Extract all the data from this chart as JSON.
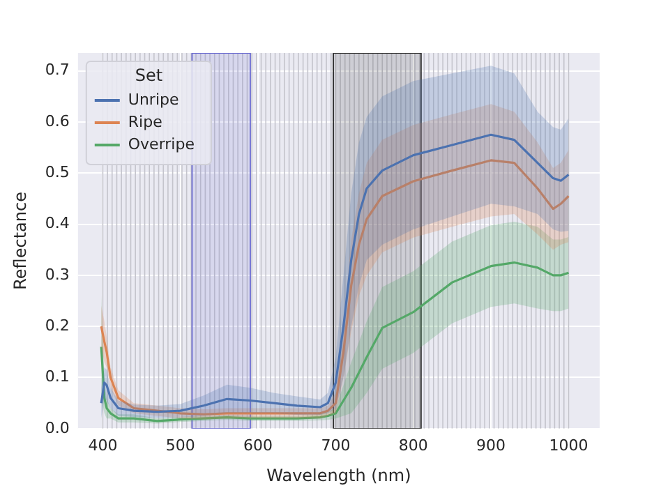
{
  "chart_data": {
    "type": "line",
    "xlabel": "Wavelength (nm)",
    "ylabel": "Reflectance",
    "legend_title": "Set",
    "legend": "top left",
    "grid": true,
    "x": [
      398,
      402,
      405,
      410,
      420,
      440,
      470,
      500,
      530,
      560,
      590,
      620,
      650,
      680,
      690,
      700,
      710,
      720,
      730,
      740,
      760,
      800,
      850,
      900,
      930,
      960,
      980,
      990,
      1000
    ],
    "xlim": [
      368,
      1040
    ],
    "xticks": [
      400,
      500,
      600,
      700,
      800,
      900,
      1000
    ],
    "ylim": [
      0,
      0.735
    ],
    "yticks": [
      {
        "value": 0,
        "label": "0.0"
      },
      0.1,
      0.2,
      0.3,
      0.4,
      0.5,
      0.6,
      0.7
    ],
    "series": [
      {
        "name": "Unripe",
        "color": "#4c72b0",
        "values": [
          0.05,
          0.09,
          0.085,
          0.06,
          0.04,
          0.035,
          0.033,
          0.035,
          0.045,
          0.058,
          0.055,
          0.05,
          0.045,
          0.042,
          0.05,
          0.09,
          0.2,
          0.33,
          0.42,
          0.47,
          0.505,
          0.535,
          0.555,
          0.575,
          0.565,
          0.52,
          0.49,
          0.485,
          0.497
        ],
        "lower": [
          0.02,
          0.06,
          0.055,
          0.04,
          0.025,
          0.023,
          0.021,
          0.022,
          0.025,
          0.03,
          0.03,
          0.03,
          0.027,
          0.027,
          0.03,
          0.04,
          0.1,
          0.2,
          0.28,
          0.33,
          0.36,
          0.39,
          0.415,
          0.44,
          0.435,
          0.42,
          0.39,
          0.385,
          0.387
        ],
        "upper": [
          0.08,
          0.12,
          0.115,
          0.08,
          0.055,
          0.047,
          0.045,
          0.048,
          0.065,
          0.086,
          0.08,
          0.07,
          0.063,
          0.057,
          0.07,
          0.14,
          0.3,
          0.46,
          0.56,
          0.61,
          0.65,
          0.68,
          0.695,
          0.71,
          0.695,
          0.62,
          0.59,
          0.585,
          0.607
        ]
      },
      {
        "name": "Ripe",
        "color": "#dd8452",
        "values": [
          0.2,
          0.17,
          0.15,
          0.1,
          0.06,
          0.04,
          0.035,
          0.03,
          0.028,
          0.03,
          0.03,
          0.03,
          0.03,
          0.03,
          0.035,
          0.05,
          0.15,
          0.28,
          0.36,
          0.41,
          0.455,
          0.484,
          0.505,
          0.525,
          0.52,
          0.47,
          0.43,
          0.44,
          0.455
        ],
        "lower": [
          0.16,
          0.13,
          0.12,
          0.08,
          0.045,
          0.03,
          0.025,
          0.02,
          0.018,
          0.02,
          0.02,
          0.02,
          0.02,
          0.02,
          0.025,
          0.03,
          0.1,
          0.19,
          0.26,
          0.3,
          0.345,
          0.374,
          0.395,
          0.415,
          0.42,
          0.38,
          0.35,
          0.36,
          0.365
        ],
        "upper": [
          0.24,
          0.21,
          0.18,
          0.12,
          0.075,
          0.05,
          0.045,
          0.04,
          0.038,
          0.04,
          0.04,
          0.04,
          0.04,
          0.04,
          0.045,
          0.07,
          0.2,
          0.37,
          0.46,
          0.52,
          0.565,
          0.594,
          0.615,
          0.635,
          0.62,
          0.56,
          0.51,
          0.52,
          0.545
        ]
      },
      {
        "name": "Overripe",
        "color": "#55a868",
        "values": [
          0.16,
          0.06,
          0.04,
          0.03,
          0.02,
          0.02,
          0.015,
          0.018,
          0.02,
          0.022,
          0.02,
          0.02,
          0.02,
          0.022,
          0.025,
          0.03,
          0.055,
          0.08,
          0.11,
          0.14,
          0.197,
          0.228,
          0.286,
          0.318,
          0.325,
          0.315,
          0.3,
          0.3,
          0.305
        ],
        "lower": [
          0.06,
          0.03,
          0.02,
          0.02,
          0.012,
          0.012,
          0.01,
          0.013,
          0.015,
          0.017,
          0.015,
          0.015,
          0.015,
          0.016,
          0.017,
          0.02,
          0.025,
          0.03,
          0.05,
          0.07,
          0.117,
          0.148,
          0.206,
          0.238,
          0.245,
          0.235,
          0.23,
          0.23,
          0.235
        ],
        "upper": [
          0.26,
          0.09,
          0.06,
          0.04,
          0.028,
          0.028,
          0.02,
          0.023,
          0.025,
          0.027,
          0.025,
          0.025,
          0.025,
          0.028,
          0.033,
          0.04,
          0.085,
          0.13,
          0.17,
          0.21,
          0.277,
          0.308,
          0.366,
          0.398,
          0.405,
          0.395,
          0.37,
          0.37,
          0.375
        ]
      }
    ],
    "bands": [
      {
        "axis": "x",
        "from": 515,
        "to": 590,
        "color": "#6a6ad0"
      },
      {
        "axis": "x",
        "from": 697,
        "to": 810,
        "color": "#303030"
      }
    ],
    "ref_lines": [
      {
        "axis": "x",
        "value": 400,
        "color": "#c4c4cc"
      },
      {
        "axis": "x",
        "value": 406,
        "color": "#c4c4cc"
      },
      {
        "axis": "x",
        "value": 412,
        "color": "#c4c4cc"
      },
      {
        "axis": "x",
        "value": 418,
        "color": "#c4c4cc"
      },
      {
        "axis": "x",
        "value": 424,
        "color": "#c4c4cc"
      },
      {
        "axis": "x",
        "value": 430,
        "color": "#c4c4cc"
      },
      {
        "axis": "x",
        "value": 436,
        "color": "#c4c4cc"
      },
      {
        "axis": "x",
        "value": 442,
        "color": "#c4c4cc"
      },
      {
        "axis": "x",
        "value": 448,
        "color": "#c4c4cc"
      },
      {
        "axis": "x",
        "value": 454,
        "color": "#c4c4cc"
      },
      {
        "axis": "x",
        "value": 460,
        "color": "#c4c4cc"
      },
      {
        "axis": "x",
        "value": 466,
        "color": "#c4c4cc"
      },
      {
        "axis": "x",
        "value": 472,
        "color": "#c4c4cc"
      },
      {
        "axis": "x",
        "value": 478,
        "color": "#c4c4cc"
      },
      {
        "axis": "x",
        "value": 484,
        "color": "#c4c4cc"
      },
      {
        "axis": "x",
        "value": 490,
        "color": "#c4c4cc"
      },
      {
        "axis": "x",
        "value": 496,
        "color": "#c4c4cc"
      },
      {
        "axis": "x",
        "value": 502,
        "color": "#c4c4cc"
      },
      {
        "axis": "x",
        "value": 508,
        "color": "#c4c4cc"
      },
      {
        "axis": "x",
        "value": 514,
        "color": "#c4c4cc"
      },
      {
        "axis": "x",
        "value": 520,
        "color": "#c4c4cc"
      },
      {
        "axis": "x",
        "value": 526,
        "color": "#c4c4cc"
      },
      {
        "axis": "x",
        "value": 532,
        "color": "#c4c4cc"
      },
      {
        "axis": "x",
        "value": 538,
        "color": "#c4c4cc"
      },
      {
        "axis": "x",
        "value": 544,
        "color": "#c4c4cc"
      },
      {
        "axis": "x",
        "value": 550,
        "color": "#c4c4cc"
      },
      {
        "axis": "x",
        "value": 556,
        "color": "#c4c4cc"
      },
      {
        "axis": "x",
        "value": 562,
        "color": "#c4c4cc"
      },
      {
        "axis": "x",
        "value": 568,
        "color": "#c4c4cc"
      },
      {
        "axis": "x",
        "value": 574,
        "color": "#c4c4cc"
      },
      {
        "axis": "x",
        "value": 580,
        "color": "#c4c4cc"
      },
      {
        "axis": "x",
        "value": 586,
        "color": "#c4c4cc"
      },
      {
        "axis": "x",
        "value": 592,
        "color": "#c4c4cc"
      },
      {
        "axis": "x",
        "value": 598,
        "color": "#c4c4cc"
      },
      {
        "axis": "x",
        "value": 604,
        "color": "#c4c4cc"
      },
      {
        "axis": "x",
        "value": 610,
        "color": "#c4c4cc"
      },
      {
        "axis": "x",
        "value": 616,
        "color": "#c4c4cc"
      },
      {
        "axis": "x",
        "value": 622,
        "color": "#c4c4cc"
      },
      {
        "axis": "x",
        "value": 628,
        "color": "#c4c4cc"
      },
      {
        "axis": "x",
        "value": 634,
        "color": "#c4c4cc"
      },
      {
        "axis": "x",
        "value": 640,
        "color": "#c4c4cc"
      },
      {
        "axis": "x",
        "value": 646,
        "color": "#c4c4cc"
      },
      {
        "axis": "x",
        "value": 652,
        "color": "#c4c4cc"
      },
      {
        "axis": "x",
        "value": 658,
        "color": "#c4c4cc"
      },
      {
        "axis": "x",
        "value": 664,
        "color": "#c4c4cc"
      },
      {
        "axis": "x",
        "value": 670,
        "color": "#c4c4cc"
      },
      {
        "axis": "x",
        "value": 676,
        "color": "#c4c4cc"
      },
      {
        "axis": "x",
        "value": 682,
        "color": "#c4c4cc"
      },
      {
        "axis": "x",
        "value": 688,
        "color": "#c4c4cc"
      },
      {
        "axis": "x",
        "value": 694,
        "color": "#c4c4cc"
      },
      {
        "axis": "x",
        "value": 700,
        "color": "#c4c4cc"
      },
      {
        "axis": "x",
        "value": 706,
        "color": "#c4c4cc"
      },
      {
        "axis": "x",
        "value": 712,
        "color": "#c4c4cc"
      },
      {
        "axis": "x",
        "value": 718,
        "color": "#c4c4cc"
      },
      {
        "axis": "x",
        "value": 724,
        "color": "#c4c4cc"
      },
      {
        "axis": "x",
        "value": 730,
        "color": "#c4c4cc"
      },
      {
        "axis": "x",
        "value": 736,
        "color": "#c4c4cc"
      },
      {
        "axis": "x",
        "value": 742,
        "color": "#c4c4cc"
      },
      {
        "axis": "x",
        "value": 748,
        "color": "#c4c4cc"
      },
      {
        "axis": "x",
        "value": 754,
        "color": "#c4c4cc"
      },
      {
        "axis": "x",
        "value": 760,
        "color": "#c4c4cc"
      },
      {
        "axis": "x",
        "value": 766,
        "color": "#c4c4cc"
      },
      {
        "axis": "x",
        "value": 772,
        "color": "#c4c4cc"
      },
      {
        "axis": "x",
        "value": 778,
        "color": "#c4c4cc"
      },
      {
        "axis": "x",
        "value": 784,
        "color": "#c4c4cc"
      },
      {
        "axis": "x",
        "value": 790,
        "color": "#c4c4cc"
      },
      {
        "axis": "x",
        "value": 796,
        "color": "#c4c4cc"
      },
      {
        "axis": "x",
        "value": 802,
        "color": "#c4c4cc"
      },
      {
        "axis": "x",
        "value": 808,
        "color": "#c4c4cc"
      },
      {
        "axis": "x",
        "value": 814,
        "color": "#c4c4cc"
      },
      {
        "axis": "x",
        "value": 820,
        "color": "#c4c4cc"
      },
      {
        "axis": "x",
        "value": 826,
        "color": "#c4c4cc"
      },
      {
        "axis": "x",
        "value": 832,
        "color": "#c4c4cc"
      },
      {
        "axis": "x",
        "value": 838,
        "color": "#c4c4cc"
      },
      {
        "axis": "x",
        "value": 844,
        "color": "#c4c4cc"
      },
      {
        "axis": "x",
        "value": 850,
        "color": "#c4c4cc"
      },
      {
        "axis": "x",
        "value": 856,
        "color": "#c4c4cc"
      },
      {
        "axis": "x",
        "value": 862,
        "color": "#c4c4cc"
      },
      {
        "axis": "x",
        "value": 868,
        "color": "#c4c4cc"
      },
      {
        "axis": "x",
        "value": 874,
        "color": "#c4c4cc"
      },
      {
        "axis": "x",
        "value": 880,
        "color": "#c4c4cc"
      },
      {
        "axis": "x",
        "value": 886,
        "color": "#c4c4cc"
      },
      {
        "axis": "x",
        "value": 892,
        "color": "#c4c4cc"
      },
      {
        "axis": "x",
        "value": 898,
        "color": "#c4c4cc"
      },
      {
        "axis": "x",
        "value": 904,
        "color": "#c4c4cc"
      },
      {
        "axis": "x",
        "value": 910,
        "color": "#c4c4cc"
      },
      {
        "axis": "x",
        "value": 916,
        "color": "#c4c4cc"
      },
      {
        "axis": "x",
        "value": 922,
        "color": "#c4c4cc"
      },
      {
        "axis": "x",
        "value": 928,
        "color": "#c4c4cc"
      },
      {
        "axis": "x",
        "value": 934,
        "color": "#c4c4cc"
      },
      {
        "axis": "x",
        "value": 940,
        "color": "#c4c4cc"
      },
      {
        "axis": "x",
        "value": 946,
        "color": "#c4c4cc"
      },
      {
        "axis": "x",
        "value": 952,
        "color": "#c4c4cc"
      },
      {
        "axis": "x",
        "value": 958,
        "color": "#c4c4cc"
      },
      {
        "axis": "x",
        "value": 964,
        "color": "#c4c4cc"
      },
      {
        "axis": "x",
        "value": 970,
        "color": "#c4c4cc"
      },
      {
        "axis": "x",
        "value": 976,
        "color": "#c4c4cc"
      },
      {
        "axis": "x",
        "value": 982,
        "color": "#c4c4cc"
      },
      {
        "axis": "x",
        "value": 988,
        "color": "#c4c4cc"
      },
      {
        "axis": "x",
        "value": 994,
        "color": "#c4c4cc"
      },
      {
        "axis": "x",
        "value": 1000,
        "color": "#c4c4cc"
      }
    ]
  }
}
